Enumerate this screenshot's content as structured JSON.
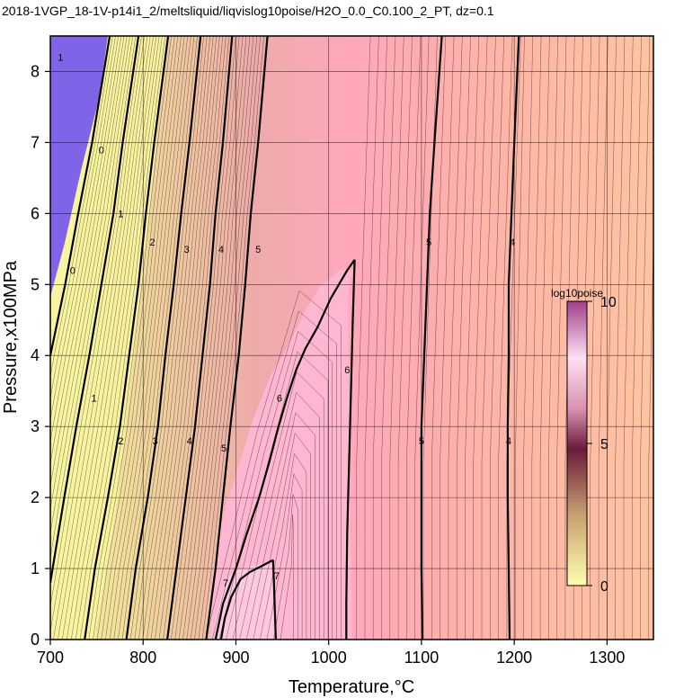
{
  "chart_data": {
    "type": "heatmap",
    "title": "2018-1VGP_18-1V-p14i1_2/meltsliquid/liqvislog10poise/H2O_0.0_C0.100_2_PT, dz=0.1",
    "xlabel": "Temperature,°C",
    "ylabel": "Pressure,x100MPa",
    "xlim": [
      700,
      1350
    ],
    "ylim": [
      0,
      8.5
    ],
    "x_ticks": [
      "700",
      "800",
      "900",
      "1000",
      "1100",
      "1200",
      "1300"
    ],
    "y_ticks": [
      "0",
      "1",
      "2",
      "3",
      "4",
      "5",
      "6",
      "7",
      "8"
    ],
    "grid": true,
    "colorbar": {
      "title": "log10poise",
      "range": [
        0,
        10
      ],
      "ticks": [
        "0",
        "5",
        "10"
      ],
      "colors": [
        "#ffffb0",
        "#c8a070",
        "#6a1a3a",
        "#ffd8f0",
        "#e0a0e0"
      ],
      "placement": "right-inside"
    },
    "contour_interval": 0.1,
    "major_contours": [
      {
        "value": 0,
        "label": "0",
        "points": [
          [
            764,
            8.5
          ],
          [
            745,
            7.0
          ],
          [
            730,
            6.0
          ],
          [
            716,
            5.0
          ],
          [
            700,
            4.0
          ]
        ]
      },
      {
        "value": 1,
        "label": "1",
        "points": [
          [
            795,
            8.5
          ],
          [
            778,
            7.0
          ],
          [
            768,
            6.0
          ],
          [
            755,
            5.0
          ],
          [
            742,
            4.0
          ],
          [
            728,
            3.0
          ],
          [
            715,
            2.0
          ],
          [
            700,
            0.8
          ]
        ]
      },
      {
        "value": 2,
        "label": "2",
        "points": [
          [
            827,
            8.5
          ],
          [
            812,
            7.0
          ],
          [
            803,
            6.0
          ],
          [
            795,
            5.0
          ],
          [
            785,
            4.0
          ],
          [
            775,
            3.0
          ],
          [
            762,
            2.0
          ],
          [
            748,
            1.0
          ],
          [
            737,
            0
          ]
        ]
      },
      {
        "value": 3,
        "label": "3",
        "points": [
          [
            862,
            8.5
          ],
          [
            850,
            7.0
          ],
          [
            841,
            6.0
          ],
          [
            833,
            5.0
          ],
          [
            824,
            4.0
          ],
          [
            816,
            3.0
          ],
          [
            805,
            2.0
          ],
          [
            792,
            1.0
          ],
          [
            782,
            0
          ]
        ]
      },
      {
        "value": 4,
        "label": "4",
        "points": [
          [
            896,
            8.5
          ],
          [
            886,
            7.0
          ],
          [
            878,
            6.0
          ],
          [
            872,
            5.0
          ],
          [
            864,
            4.0
          ],
          [
            856,
            3.0
          ],
          [
            846,
            2.0
          ],
          [
            836,
            1.0
          ],
          [
            826,
            0
          ]
        ]
      },
      {
        "value": 5,
        "label": "5",
        "points": [
          [
            934,
            8.5
          ],
          [
            924,
            7.0
          ],
          [
            916,
            6.0
          ],
          [
            910,
            5.0
          ],
          [
            903,
            4.0
          ],
          [
            894,
            3.0
          ],
          [
            886,
            2.0
          ],
          [
            878,
            1.0
          ],
          [
            868,
            0
          ]
        ]
      },
      {
        "value": 6,
        "label": "6",
        "points": [
          [
            1028,
            5.35
          ],
          [
            1020,
            5.2
          ],
          [
            1002,
            4.8
          ],
          [
            988,
            4.4
          ],
          [
            975,
            4.1
          ],
          [
            965,
            3.8
          ],
          [
            955,
            3.4
          ],
          [
            946,
            3.0
          ],
          [
            936,
            2.5
          ],
          [
            925,
            2.0
          ],
          [
            912,
            1.5
          ],
          [
            900,
            1.0
          ],
          [
            886,
            0.5
          ],
          [
            878,
            0
          ]
        ]
      },
      {
        "value": 6,
        "label": "6",
        "points": [
          [
            1028,
            5.35
          ],
          [
            1026,
            4.5
          ],
          [
            1024,
            3.5
          ],
          [
            1022,
            2.5
          ],
          [
            1020,
            1.5
          ],
          [
            1019,
            0.5
          ],
          [
            1019,
            0
          ]
        ]
      },
      {
        "value": 7,
        "label": "7",
        "points": [
          [
            940,
            1.12
          ],
          [
            930,
            1.05
          ],
          [
            915,
            0.95
          ],
          [
            905,
            0.85
          ],
          [
            895,
            0.6
          ],
          [
            888,
            0.3
          ],
          [
            884,
            0
          ]
        ]
      },
      {
        "value": 7,
        "label": "7",
        "points": [
          [
            940,
            1.12
          ],
          [
            941,
            0.8
          ],
          [
            942,
            0.4
          ],
          [
            943,
            0
          ]
        ]
      },
      {
        "value": 5,
        "label": "5",
        "points": [
          [
            1122,
            8.5
          ],
          [
            1114,
            7.0
          ],
          [
            1109,
            6.0
          ],
          [
            1106,
            5.0
          ],
          [
            1103,
            4.0
          ],
          [
            1100,
            3.0
          ],
          [
            1100,
            2.0
          ],
          [
            1100,
            1.0
          ],
          [
            1101,
            0
          ]
        ]
      },
      {
        "value": 4,
        "label": "4",
        "points": [
          [
            1205,
            8.5
          ],
          [
            1200,
            7.0
          ],
          [
            1197,
            6.0
          ],
          [
            1194,
            5.0
          ],
          [
            1194,
            4.0
          ],
          [
            1193,
            3.0
          ],
          [
            1193,
            2.0
          ],
          [
            1194,
            1.0
          ],
          [
            1195,
            0
          ]
        ]
      }
    ],
    "contour_labels": [
      {
        "text": "1",
        "x": 711,
        "y": 8.2
      },
      {
        "text": "0",
        "x": 755,
        "y": 6.9
      },
      {
        "text": "0",
        "x": 724,
        "y": 5.2
      },
      {
        "text": "1",
        "x": 776,
        "y": 6.0
      },
      {
        "text": "1",
        "x": 747,
        "y": 3.4
      },
      {
        "text": "2",
        "x": 810,
        "y": 5.6
      },
      {
        "text": "2",
        "x": 776,
        "y": 2.8
      },
      {
        "text": "3",
        "x": 847,
        "y": 5.5
      },
      {
        "text": "3",
        "x": 813,
        "y": 2.8
      },
      {
        "text": "4",
        "x": 884,
        "y": 5.5
      },
      {
        "text": "4",
        "x": 850,
        "y": 2.8
      },
      {
        "text": "5",
        "x": 924,
        "y": 5.5
      },
      {
        "text": "5",
        "x": 887,
        "y": 2.7
      },
      {
        "text": "6",
        "x": 947,
        "y": 3.4
      },
      {
        "text": "6",
        "x": 1020,
        "y": 3.8
      },
      {
        "text": "7",
        "x": 889,
        "y": 0.8
      },
      {
        "text": "7",
        "x": 944,
        "y": 0.9
      },
      {
        "text": "5",
        "x": 1108,
        "y": 5.6
      },
      {
        "text": "5",
        "x": 1100,
        "y": 2.8
      },
      {
        "text": "4",
        "x": 1198,
        "y": 5.6
      },
      {
        "text": "4",
        "x": 1194,
        "y": 2.8
      }
    ]
  }
}
